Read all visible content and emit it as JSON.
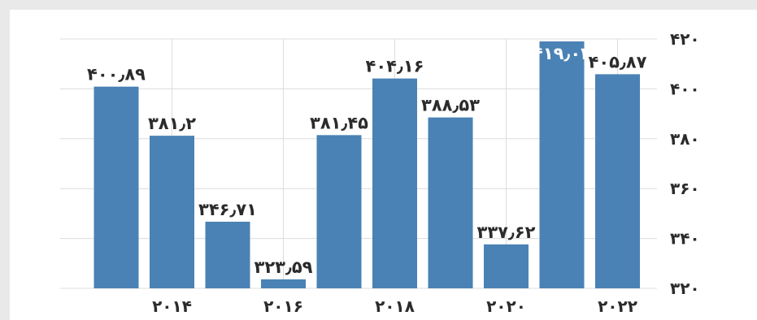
{
  "chart_data": {
    "type": "bar",
    "categories": [
      "2013",
      "2014",
      "2015",
      "2016",
      "2017",
      "2018",
      "2019",
      "2020",
      "2021",
      "2022"
    ],
    "values": [
      400.89,
      381.2,
      346.71,
      323.59,
      381.45,
      404.16,
      388.53,
      337.62,
      419.02,
      405.87
    ],
    "value_labels": [
      "۴۰۰٫۸۹",
      "۳۸۱٫۲",
      "۳۴۶٫۷۱",
      "۳۲۳٫۵۹",
      "۳۸۱٫۴۵",
      "۴۰۴٫۱۶",
      "۳۸۸٫۵۳",
      "۳۳۷٫۶۲",
      "۴۱۹٫۰۲",
      "۴۰۵٫۸۷"
    ],
    "ylim": [
      320,
      420
    ],
    "yticks": [
      320,
      340,
      360,
      380,
      400,
      420
    ],
    "ytick_labels": [
      "۳۲۰",
      "۳۴۰",
      "۳۶۰",
      "۳۸۰",
      "۴۰۰",
      "۴۲۰"
    ],
    "xtick_labels": [
      {
        "category": "2014",
        "label": "۲۰۱۴"
      },
      {
        "category": "2016",
        "label": "۲۰۱۶"
      },
      {
        "category": "2018",
        "label": "۲۰۱۸"
      },
      {
        "category": "2020",
        "label": "۲۰۲۰"
      },
      {
        "category": "2022",
        "label": "۲۰۲۲"
      }
    ],
    "y_axis_side": "right",
    "grid": true,
    "bar_color": "#4a82b5",
    "title": "",
    "xlabel": "",
    "ylabel": ""
  }
}
